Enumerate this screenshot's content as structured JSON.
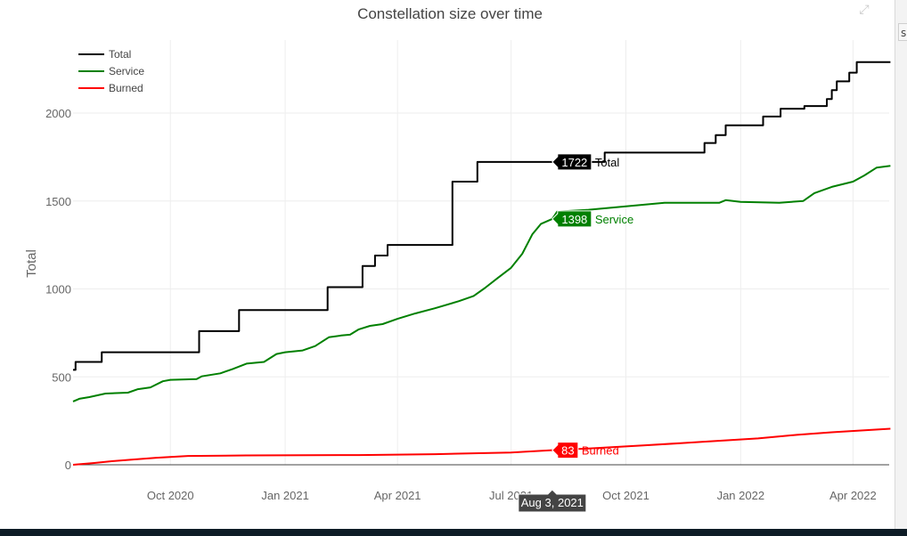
{
  "chart_data": {
    "type": "line",
    "title": "Constellation size over time",
    "ylabel": "Total",
    "xlabel": "",
    "x_range": [
      "2020-07-15",
      "2022-04-30"
    ],
    "ylim": [
      -50,
      2400
    ],
    "y_ticks": [
      0,
      500,
      1000,
      1500,
      2000
    ],
    "x_ticks": [
      {
        "date": "2020-10-01",
        "label": "Oct 2020"
      },
      {
        "date": "2021-01-01",
        "label": "Jan 2021"
      },
      {
        "date": "2021-04-01",
        "label": "Apr 2021"
      },
      {
        "date": "2021-07-01",
        "label": "Jul 2021"
      },
      {
        "date": "2021-10-01",
        "label": "Oct 2021"
      },
      {
        "date": "2022-01-01",
        "label": "Jan 2022"
      },
      {
        "date": "2022-04-01",
        "label": "Apr 2022"
      }
    ],
    "grid": true,
    "legend_position": "top-left",
    "series": [
      {
        "name": "Total",
        "color": "#000000",
        "shape": "hv",
        "points": [
          [
            "2020-07-15",
            540
          ],
          [
            "2020-07-17",
            585
          ],
          [
            "2020-08-07",
            640
          ],
          [
            "2020-10-24",
            760
          ],
          [
            "2020-11-25",
            880
          ],
          [
            "2021-02-04",
            1010
          ],
          [
            "2021-03-04",
            1130
          ],
          [
            "2021-03-14",
            1190
          ],
          [
            "2021-03-24",
            1250
          ],
          [
            "2021-04-07",
            1250
          ],
          [
            "2021-05-15",
            1610
          ],
          [
            "2021-06-03",
            1610
          ],
          [
            "2021-06-04",
            1722
          ],
          [
            "2021-09-14",
            1775
          ],
          [
            "2021-12-02",
            1775
          ],
          [
            "2021-12-03",
            1830
          ],
          [
            "2021-12-12",
            1875
          ],
          [
            "2021-12-20",
            1930
          ],
          [
            "2022-01-19",
            1980
          ],
          [
            "2022-02-02",
            2025
          ],
          [
            "2022-02-21",
            2040
          ],
          [
            "2022-03-11",
            2080
          ],
          [
            "2022-03-15",
            2130
          ],
          [
            "2022-03-19",
            2180
          ],
          [
            "2022-03-29",
            2230
          ],
          [
            "2022-04-04",
            2290
          ],
          [
            "2022-05-01",
            2290
          ]
        ]
      },
      {
        "name": "Service",
        "color": "#008000",
        "shape": "linear",
        "points": [
          [
            "2020-07-15",
            360
          ],
          [
            "2020-07-20",
            375
          ],
          [
            "2020-07-28",
            385
          ],
          [
            "2020-08-10",
            405
          ],
          [
            "2020-08-28",
            410
          ],
          [
            "2020-09-05",
            430
          ],
          [
            "2020-09-15",
            440
          ],
          [
            "2020-09-25",
            475
          ],
          [
            "2020-10-01",
            483
          ],
          [
            "2020-10-22",
            487
          ],
          [
            "2020-10-26",
            503
          ],
          [
            "2020-11-10",
            520
          ],
          [
            "2020-11-20",
            545
          ],
          [
            "2020-12-01",
            575
          ],
          [
            "2020-12-15",
            585
          ],
          [
            "2020-12-25",
            630
          ],
          [
            "2021-01-01",
            640
          ],
          [
            "2021-01-15",
            650
          ],
          [
            "2021-01-25",
            675
          ],
          [
            "2021-02-05",
            725
          ],
          [
            "2021-02-15",
            735
          ],
          [
            "2021-02-22",
            740
          ],
          [
            "2021-03-01",
            770
          ],
          [
            "2021-03-10",
            790
          ],
          [
            "2021-03-20",
            800
          ],
          [
            "2021-04-01",
            830
          ],
          [
            "2021-04-15",
            860
          ],
          [
            "2021-05-01",
            890
          ],
          [
            "2021-05-20",
            930
          ],
          [
            "2021-06-01",
            960
          ],
          [
            "2021-06-10",
            1005
          ],
          [
            "2021-06-20",
            1060
          ],
          [
            "2021-07-01",
            1120
          ],
          [
            "2021-07-10",
            1200
          ],
          [
            "2021-07-18",
            1310
          ],
          [
            "2021-07-25",
            1370
          ],
          [
            "2021-08-03",
            1398
          ],
          [
            "2021-08-07",
            1440
          ],
          [
            "2021-08-20",
            1445
          ],
          [
            "2021-09-01",
            1450
          ],
          [
            "2021-10-01",
            1470
          ],
          [
            "2021-11-01",
            1490
          ],
          [
            "2021-12-15",
            1490
          ],
          [
            "2021-12-20",
            1505
          ],
          [
            "2022-01-01",
            1495
          ],
          [
            "2022-02-01",
            1490
          ],
          [
            "2022-02-20",
            1500
          ],
          [
            "2022-03-01",
            1545
          ],
          [
            "2022-03-15",
            1580
          ],
          [
            "2022-04-01",
            1610
          ],
          [
            "2022-04-10",
            1645
          ],
          [
            "2022-04-20",
            1690
          ],
          [
            "2022-05-01",
            1700
          ]
        ]
      },
      {
        "name": "Burned",
        "color": "#ff0000",
        "shape": "linear",
        "points": [
          [
            "2020-07-15",
            0
          ],
          [
            "2020-08-01",
            10
          ],
          [
            "2020-08-15",
            20
          ],
          [
            "2020-09-01",
            30
          ],
          [
            "2020-09-20",
            40
          ],
          [
            "2020-10-15",
            50
          ],
          [
            "2020-12-01",
            53
          ],
          [
            "2021-03-01",
            55
          ],
          [
            "2021-05-01",
            60
          ],
          [
            "2021-07-01",
            70
          ],
          [
            "2021-08-03",
            83
          ],
          [
            "2021-09-01",
            92
          ],
          [
            "2021-10-15",
            110
          ],
          [
            "2021-12-01",
            130
          ],
          [
            "2022-01-15",
            150
          ],
          [
            "2022-02-15",
            170
          ],
          [
            "2022-03-15",
            185
          ],
          [
            "2022-05-01",
            205
          ]
        ]
      }
    ],
    "hover": {
      "date_label": "Aug 3, 2021",
      "labels": [
        {
          "series": "Total",
          "value": "1722",
          "name": "Total"
        },
        {
          "series": "Service",
          "value": "1398",
          "name": "Service"
        },
        {
          "series": "Burned",
          "value": "83",
          "name": "Burned"
        }
      ]
    }
  },
  "toolbar": {
    "expand_icon": "expand-icon",
    "expand_glyph": "⤢"
  },
  "side_panel": {
    "tab_text": "s"
  }
}
